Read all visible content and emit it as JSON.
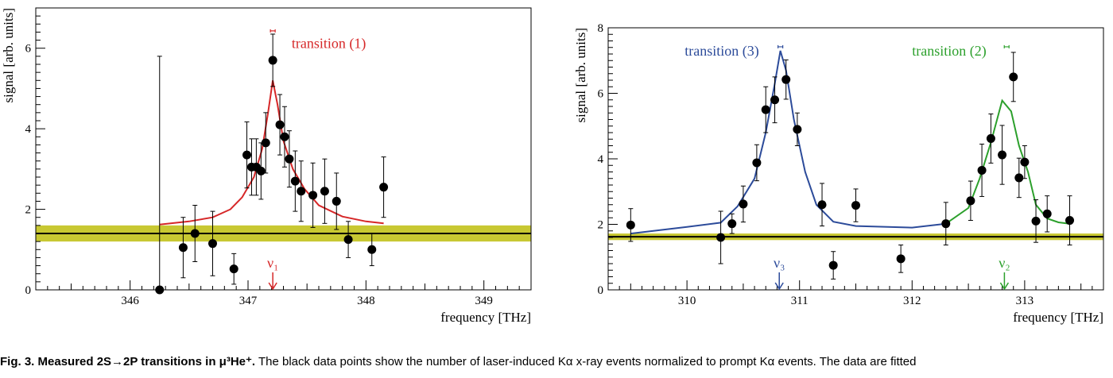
{
  "caption": {
    "label": "Fig. 3.",
    "title": "Measured 2S→2P transitions in μ³He⁺.",
    "text": "The black data points show the number of laser-induced Kα x-ray events normalized to prompt Kα events. The data are fitted"
  },
  "colors": {
    "red": "#d62728",
    "blue": "#2c4b9a",
    "green": "#2ca02c",
    "band": "#c8c832",
    "data": "#000000"
  },
  "chart_data": [
    {
      "type": "scatter",
      "xlabel": "frequency [THz]",
      "ylabel": "signal [arb. units]",
      "xlim": [
        345.2,
        349.4
      ],
      "ylim": [
        0,
        7
      ],
      "xticks": [
        346,
        347,
        348,
        349
      ],
      "yticks": [
        0,
        2,
        4,
        6
      ],
      "background": {
        "level": 1.4,
        "band": [
          1.2,
          1.6
        ]
      },
      "data": [
        {
          "x": 346.25,
          "y": 0.0,
          "err": 5.8
        },
        {
          "x": 346.45,
          "y": 1.05,
          "err": 0.75
        },
        {
          "x": 346.55,
          "y": 1.4,
          "err": 0.7
        },
        {
          "x": 346.7,
          "y": 1.15,
          "err": 0.8
        },
        {
          "x": 346.88,
          "y": 0.52,
          "err": 0.38
        },
        {
          "x": 346.99,
          "y": 3.35,
          "err": 0.82
        },
        {
          "x": 347.03,
          "y": 3.05,
          "err": 0.7
        },
        {
          "x": 347.07,
          "y": 3.05,
          "err": 0.7
        },
        {
          "x": 347.11,
          "y": 2.95,
          "err": 0.7
        },
        {
          "x": 347.15,
          "y": 3.65,
          "err": 0.75
        },
        {
          "x": 347.21,
          "y": 5.7,
          "err": 0.65
        },
        {
          "x": 347.27,
          "y": 4.1,
          "err": 0.75
        },
        {
          "x": 347.31,
          "y": 3.8,
          "err": 0.75
        },
        {
          "x": 347.35,
          "y": 3.25,
          "err": 0.7
        },
        {
          "x": 347.4,
          "y": 2.7,
          "err": 0.75
        },
        {
          "x": 347.45,
          "y": 2.45,
          "err": 0.75
        },
        {
          "x": 347.55,
          "y": 2.35,
          "err": 0.8
        },
        {
          "x": 347.65,
          "y": 2.45,
          "err": 0.8
        },
        {
          "x": 347.75,
          "y": 2.2,
          "err": 0.7
        },
        {
          "x": 347.85,
          "y": 1.25,
          "err": 0.45
        },
        {
          "x": 348.05,
          "y": 1.0,
          "err": 0.4
        },
        {
          "x": 348.15,
          "y": 2.55,
          "err": 0.75
        }
      ],
      "fits": [
        {
          "color": "red",
          "label": "transition (1)",
          "points": [
            [
              346.25,
              1.62
            ],
            [
              346.5,
              1.7
            ],
            [
              346.7,
              1.8
            ],
            [
              346.85,
              2.0
            ],
            [
              346.95,
              2.3
            ],
            [
              347.05,
              2.8
            ],
            [
              347.12,
              3.5
            ],
            [
              347.17,
              4.4
            ],
            [
              347.21,
              5.2
            ],
            [
              347.25,
              4.6
            ],
            [
              347.3,
              3.7
            ],
            [
              347.38,
              3.0
            ],
            [
              347.48,
              2.5
            ],
            [
              347.6,
              2.1
            ],
            [
              347.8,
              1.82
            ],
            [
              348.0,
              1.7
            ],
            [
              348.15,
              1.65
            ]
          ],
          "peak": 347.21,
          "marker": {
            "x": 347.21,
            "label": "ν₁"
          },
          "bracket": {
            "x": 347.21,
            "y": 6.43
          }
        }
      ]
    },
    {
      "type": "scatter",
      "xlabel": "frequency [THz]",
      "ylabel": "signal [arb. units]",
      "xlim": [
        309.3,
        313.7
      ],
      "ylim": [
        0,
        8
      ],
      "xticks": [
        310,
        311,
        312,
        313
      ],
      "yticks": [
        0,
        2,
        4,
        6,
        8
      ],
      "background": {
        "level": 1.62,
        "band": [
          1.52,
          1.72
        ]
      },
      "data": [
        {
          "x": 309.5,
          "y": 1.98,
          "err": 0.5
        },
        {
          "x": 310.3,
          "y": 1.6,
          "err": 0.8
        },
        {
          "x": 310.4,
          "y": 2.02,
          "err": 0.3
        },
        {
          "x": 310.5,
          "y": 2.62,
          "err": 0.55
        },
        {
          "x": 310.62,
          "y": 3.88,
          "err": 0.55
        },
        {
          "x": 310.7,
          "y": 5.5,
          "err": 0.7
        },
        {
          "x": 310.78,
          "y": 5.8,
          "err": 0.7
        },
        {
          "x": 310.88,
          "y": 6.42,
          "err": 0.6
        },
        {
          "x": 310.98,
          "y": 4.9,
          "err": 0.5
        },
        {
          "x": 311.2,
          "y": 2.6,
          "err": 0.65
        },
        {
          "x": 311.3,
          "y": 0.75,
          "err": 0.42
        },
        {
          "x": 311.5,
          "y": 2.58,
          "err": 0.5
        },
        {
          "x": 311.9,
          "y": 0.95,
          "err": 0.42
        },
        {
          "x": 312.3,
          "y": 2.02,
          "err": 0.65
        },
        {
          "x": 312.52,
          "y": 2.72,
          "err": 0.6
        },
        {
          "x": 312.62,
          "y": 3.65,
          "err": 0.8
        },
        {
          "x": 312.7,
          "y": 4.62,
          "err": 0.75
        },
        {
          "x": 312.8,
          "y": 4.12,
          "err": 0.9
        },
        {
          "x": 312.9,
          "y": 6.5,
          "err": 0.75
        },
        {
          "x": 312.95,
          "y": 3.42,
          "err": 0.6
        },
        {
          "x": 313.0,
          "y": 3.9,
          "err": 0.5
        },
        {
          "x": 313.1,
          "y": 2.1,
          "err": 0.65
        },
        {
          "x": 313.2,
          "y": 2.32,
          "err": 0.55
        },
        {
          "x": 313.4,
          "y": 2.12,
          "err": 0.75
        }
      ],
      "fits": [
        {
          "color": "blue",
          "label": "transition (3)",
          "points": [
            [
              309.5,
              1.72
            ],
            [
              310.0,
              1.92
            ],
            [
              310.3,
              2.05
            ],
            [
              310.45,
              2.55
            ],
            [
              310.6,
              3.4
            ],
            [
              310.7,
              4.8
            ],
            [
              310.78,
              6.3
            ],
            [
              310.83,
              7.3
            ],
            [
              310.88,
              6.7
            ],
            [
              310.95,
              5.2
            ],
            [
              311.05,
              3.6
            ],
            [
              311.15,
              2.6
            ],
            [
              311.3,
              2.08
            ],
            [
              311.5,
              1.95
            ],
            [
              312.0,
              1.9
            ],
            [
              312.3,
              2.02
            ]
          ],
          "peak": 310.83,
          "marker": {
            "x": 310.82,
            "label": "ν₃"
          },
          "bracket": {
            "x": 310.83,
            "y": 7.42
          }
        },
        {
          "color": "green",
          "label": "transition (2)",
          "points": [
            [
              312.3,
              2.02
            ],
            [
              312.5,
              2.5
            ],
            [
              312.6,
              3.4
            ],
            [
              312.7,
              4.5
            ],
            [
              312.8,
              5.78
            ],
            [
              312.88,
              5.45
            ],
            [
              312.95,
              4.4
            ],
            [
              313.03,
              3.6
            ],
            [
              313.1,
              2.6
            ],
            [
              313.2,
              2.18
            ],
            [
              313.3,
              2.06
            ],
            [
              313.4,
              2.02
            ]
          ],
          "peak": 312.82,
          "marker": {
            "x": 312.82,
            "label": "ν₂"
          },
          "bracket": {
            "x": 312.84,
            "y": 7.42
          }
        }
      ]
    }
  ]
}
